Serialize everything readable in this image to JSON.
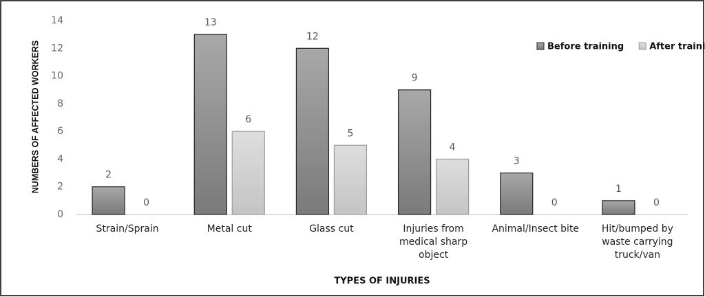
{
  "chart_data": {
    "type": "bar",
    "xlabel": "TYPES OF INJURIES",
    "ylabel": "NUMBERS OF AFFECTED WORKERS",
    "categories": [
      "Strain/Sprain",
      "Metal cut",
      "Glass cut",
      "Injuries from medical sharp object",
      "Animal/Insect bite",
      "Hit/bumped by waste carrying truck/van"
    ],
    "series": [
      {
        "name": "Before training",
        "color": "#8c8c8c",
        "values": [
          2,
          13,
          12,
          9,
          3,
          1
        ]
      },
      {
        "name": "After training",
        "color": "#d0d0d0",
        "values": [
          0,
          6,
          5,
          4,
          0,
          0
        ]
      }
    ],
    "ylim": [
      0,
      14
    ],
    "yticks": [
      0,
      2,
      4,
      6,
      8,
      10,
      12,
      14
    ],
    "legend": "top-right"
  }
}
